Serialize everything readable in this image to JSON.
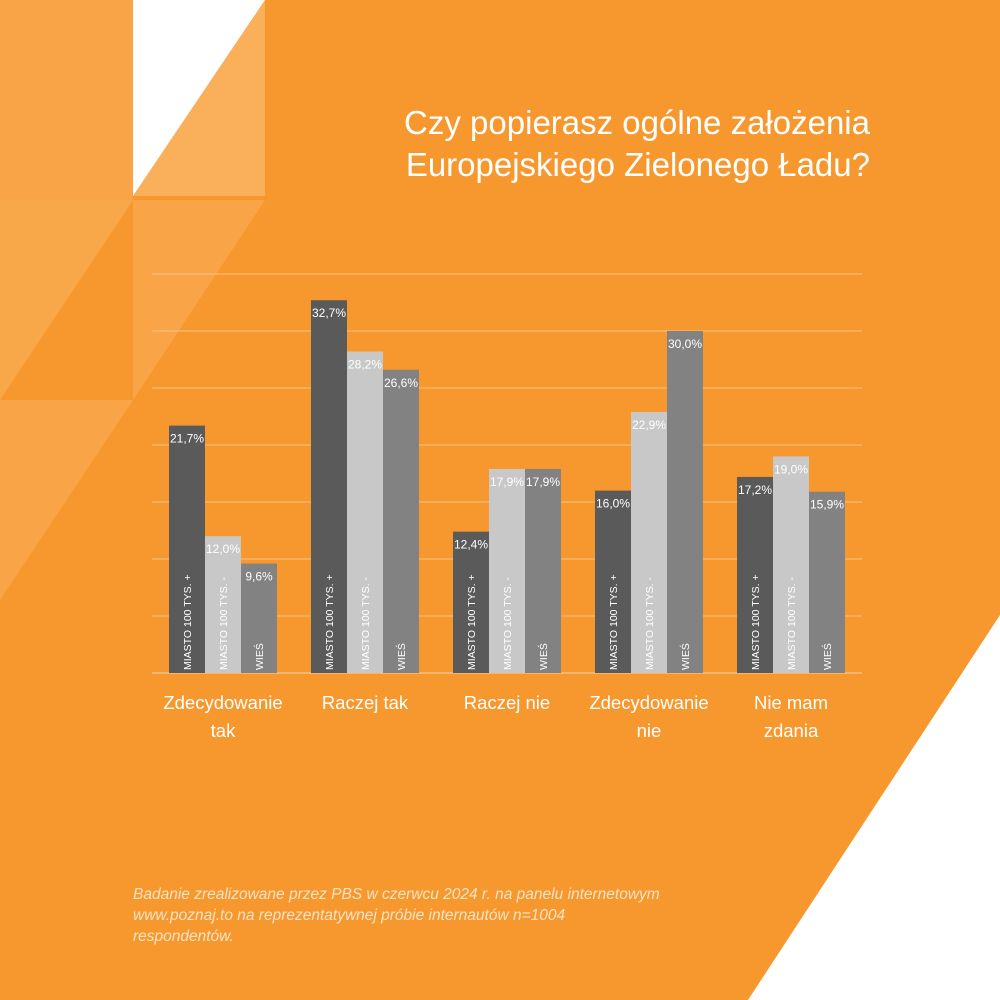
{
  "title": {
    "line1": "Czy popierasz ogólne założenia",
    "line2": "Europejskiego Zielonego Ładu?"
  },
  "colors": {
    "background": "#f7982f",
    "series": [
      "#5a5a5a",
      "#c8c8c8",
      "#828282"
    ],
    "gridline": "#fcd0a0",
    "text": "#ffffff"
  },
  "chart_data": {
    "type": "bar",
    "categories": [
      "Zdecydowanie tak",
      "Raczej tak",
      "Raczej nie",
      "Zdecydowanie nie",
      "Nie mam zdania"
    ],
    "category_label_lines": [
      [
        "Zdecydowanie",
        "tak"
      ],
      [
        "Raczej tak"
      ],
      [
        "Raczej nie"
      ],
      [
        "Zdecydowanie",
        "nie"
      ],
      [
        "Nie mam",
        "zdania"
      ]
    ],
    "series": [
      {
        "name": "MIASTO 100 TYS. +",
        "values": [
          21.7,
          32.7,
          12.4,
          16.0,
          17.2
        ],
        "labels": [
          "21,7%",
          "32,7%",
          "12,4%",
          "16,0%",
          "17,2%"
        ]
      },
      {
        "name": "MIASTO 100 TYS. -",
        "values": [
          12.0,
          28.2,
          17.9,
          22.9,
          19.0
        ],
        "labels": [
          "12,0%",
          "28,2%",
          "17,9%",
          "22,9%",
          "19,0%"
        ]
      },
      {
        "name": "WIEŚ",
        "values": [
          9.6,
          26.6,
          17.9,
          30.0,
          15.9
        ],
        "labels": [
          "9,6%",
          "26,6%",
          "17,9%",
          "30,0%",
          "15,9%"
        ]
      }
    ],
    "ylim": [
      0,
      35
    ],
    "grid": true,
    "legend": "none (series names written vertically inside bars)"
  },
  "footnote": {
    "line1": "Badanie zrealizowane przez PBS w czerwcu 2024 r. na panelu internetowym",
    "line2": "www.poznaj.to na reprezentatywnej próbie internautów n=1004",
    "line3": "respondentów."
  }
}
